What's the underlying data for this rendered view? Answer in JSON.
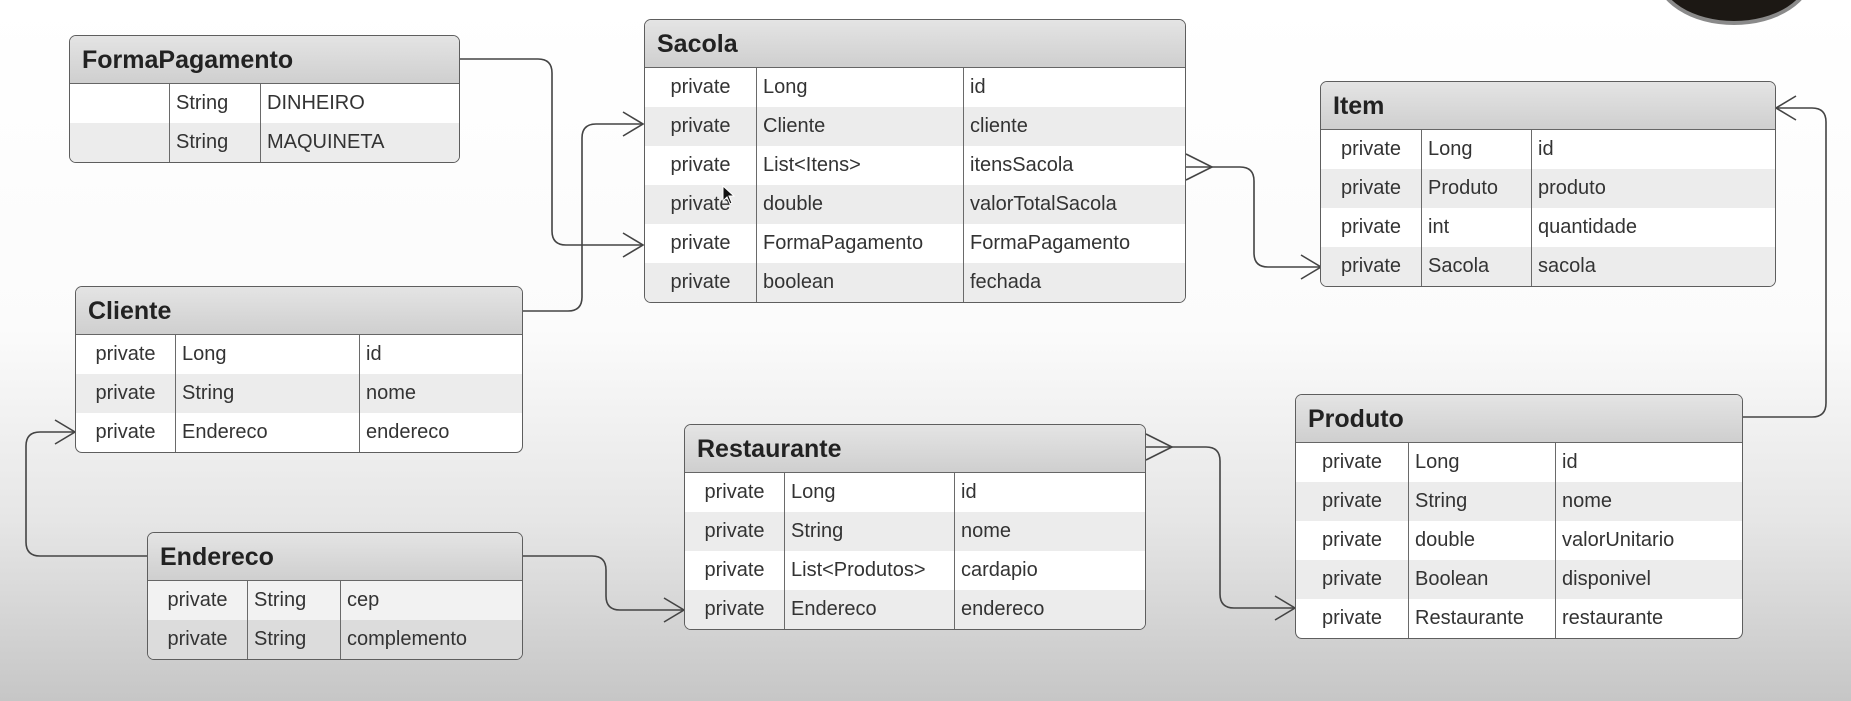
{
  "entities": {
    "forma_pagamento": {
      "title": "FormaPagamento",
      "rows": [
        {
          "visibility": "",
          "type": "String",
          "name": "DINHEIRO"
        },
        {
          "visibility": "",
          "type": "String",
          "name": "MAQUINETA"
        }
      ]
    },
    "sacola": {
      "title": "Sacola",
      "rows": [
        {
          "visibility": "private",
          "type": "Long",
          "name": "id"
        },
        {
          "visibility": "private",
          "type": "Cliente",
          "name": "cliente"
        },
        {
          "visibility": "private",
          "type": "List<Itens>",
          "name": "itensSacola"
        },
        {
          "visibility": "private",
          "type": "double",
          "name": "valorTotalSacola"
        },
        {
          "visibility": "private",
          "type": "FormaPagamento",
          "name": "FormaPagamento"
        },
        {
          "visibility": "private",
          "type": "boolean",
          "name": "fechada"
        }
      ]
    },
    "item": {
      "title": "Item",
      "rows": [
        {
          "visibility": "private",
          "type": "Long",
          "name": "id"
        },
        {
          "visibility": "private",
          "type": "Produto",
          "name": "produto"
        },
        {
          "visibility": "private",
          "type": "int",
          "name": "quantidade"
        },
        {
          "visibility": "private",
          "type": "Sacola",
          "name": "sacola"
        }
      ]
    },
    "cliente": {
      "title": "Cliente",
      "rows": [
        {
          "visibility": "private",
          "type": "Long",
          "name": "id"
        },
        {
          "visibility": "private",
          "type": "String",
          "name": "nome"
        },
        {
          "visibility": "private",
          "type": "Endereco",
          "name": "endereco"
        }
      ]
    },
    "restaurante": {
      "title": "Restaurante",
      "rows": [
        {
          "visibility": "private",
          "type": "Long",
          "name": "id"
        },
        {
          "visibility": "private",
          "type": "String",
          "name": "nome"
        },
        {
          "visibility": "private",
          "type": "List<Produtos>",
          "name": "cardapio"
        },
        {
          "visibility": "private",
          "type": "Endereco",
          "name": "endereco"
        }
      ]
    },
    "produto": {
      "title": "Produto",
      "rows": [
        {
          "visibility": "private",
          "type": "Long",
          "name": "id"
        },
        {
          "visibility": "private",
          "type": "String",
          "name": "nome"
        },
        {
          "visibility": "private",
          "type": "double",
          "name": "valorUnitario"
        },
        {
          "visibility": "private",
          "type": "Boolean",
          "name": "disponivel"
        },
        {
          "visibility": "private",
          "type": "Restaurante",
          "name": "restaurante"
        }
      ]
    },
    "endereco": {
      "title": "Endereco",
      "rows": [
        {
          "visibility": "private",
          "type": "String",
          "name": "cep"
        },
        {
          "visibility": "private",
          "type": "String",
          "name": "complemento"
        }
      ]
    }
  },
  "connectors": [
    {
      "from": "FormaPagamento",
      "to": "Sacola",
      "end": "arrow"
    },
    {
      "from": "Cliente",
      "to": "Sacola",
      "end": "arrow"
    },
    {
      "from": "Sacola",
      "to": "Item",
      "start": "crow-foot",
      "end": "arrow"
    },
    {
      "from": "Produto",
      "to": "Item",
      "end": "arrow"
    },
    {
      "from": "Endereco",
      "to": "Cliente",
      "end": "arrow"
    },
    {
      "from": "Endereco",
      "to": "Restaurante",
      "end": "arrow"
    },
    {
      "from": "Restaurante",
      "to": "Produto",
      "start": "crow-foot",
      "end": "arrow"
    }
  ],
  "colors": {
    "header": "#d6d6d6",
    "border": "#5e5e5e",
    "alt_row": "#ececec",
    "line": "#444444"
  }
}
